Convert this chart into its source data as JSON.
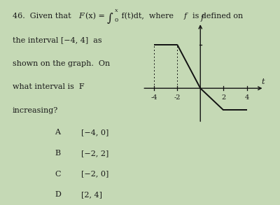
{
  "bg_color": "#c5d9b5",
  "text_color": "#1a1a1a",
  "choices": [
    [
      "A",
      "[−4, 0]"
    ],
    [
      "B",
      "[−2, 2]"
    ],
    [
      "C",
      "[−2, 0]"
    ],
    [
      "D",
      "[2, 4]"
    ]
  ],
  "graph": {
    "xlim": [
      -5.2,
      5.8
    ],
    "ylim": [
      -1.8,
      3.2
    ],
    "xticks": [
      -4,
      -2,
      2,
      4
    ],
    "f_segments": [
      {
        "x": [
          -4,
          -2
        ],
        "y": [
          2,
          2
        ]
      },
      {
        "x": [
          -2,
          0
        ],
        "y": [
          2,
          0
        ]
      },
      {
        "x": [
          0,
          2
        ],
        "y": [
          0,
          -1
        ]
      },
      {
        "x": [
          2,
          4
        ],
        "y": [
          -1,
          -1
        ]
      }
    ],
    "line_color": "#111111",
    "axis_color": "#111111",
    "xlabel": "t",
    "ylabel": "f"
  }
}
